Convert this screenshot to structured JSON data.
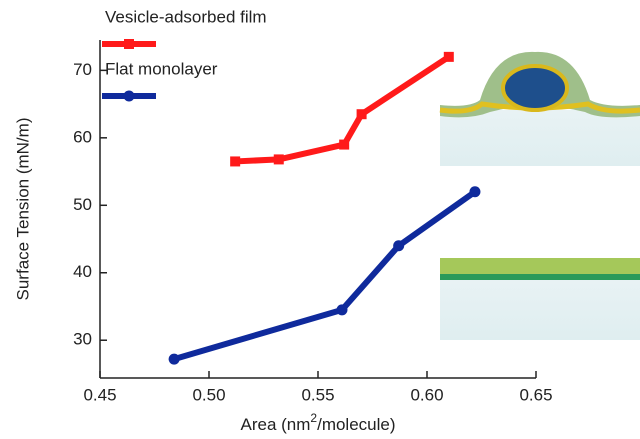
{
  "chart_data": {
    "type": "line",
    "xlabel": {
      "text": "Area (nm",
      "sup": "2",
      "tail": "/molecule)"
    },
    "ylabel": "Surface Tension (mN/m)",
    "xlim": [
      0.45,
      0.65
    ],
    "ylim": [
      24.4,
      74.5
    ],
    "xticks": [
      0.45,
      {
        "value": 0.5,
        "label": "0.50"
      },
      0.55,
      {
        "value": 0.6,
        "label": "0.60"
      },
      0.65
    ],
    "yticks": [
      30,
      40,
      50,
      60,
      70
    ],
    "series": [
      {
        "name": "Vesicle-adsorbed film",
        "color": "#ff1a1a",
        "marker": "square",
        "x": [
          0.512,
          0.532,
          0.562,
          0.57,
          0.61
        ],
        "values": [
          56.5,
          56.8,
          59.0,
          63.5,
          72.0
        ]
      },
      {
        "name": "Flat monolayer",
        "color": "#0f2a9c",
        "marker": "circle",
        "x": [
          0.484,
          0.561,
          0.587,
          0.622
        ],
        "values": [
          27.2,
          34.5,
          44.0,
          52.0
        ]
      }
    ]
  }
}
